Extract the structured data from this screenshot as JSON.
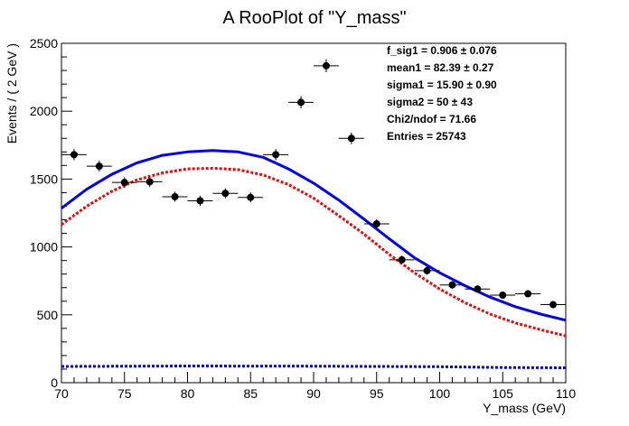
{
  "chart_data": {
    "type": "scatter",
    "title": "A RooPlot of \"Y_mass\"",
    "xlabel": "Y_mass (GeV)",
    "ylabel": "Events / ( 2 GeV )",
    "xlim": [
      70,
      110
    ],
    "ylim": [
      0,
      2500
    ],
    "x_ticks": [
      "70",
      "75",
      "80",
      "85",
      "90",
      "95",
      "100",
      "105",
      "110"
    ],
    "y_ticks": [
      "0",
      "500",
      "1000",
      "1500",
      "2000",
      "2500"
    ],
    "grid": false,
    "data_points": {
      "x": [
        71,
        73,
        75,
        77,
        79,
        81,
        83,
        85,
        87,
        89,
        91,
        93,
        95,
        97,
        99,
        101,
        103,
        105,
        107,
        109
      ],
      "y": [
        1680,
        1595,
        1475,
        1480,
        1370,
        1340,
        1395,
        1365,
        1680,
        2065,
        2335,
        1800,
        1170,
        905,
        825,
        720,
        690,
        645,
        655,
        575
      ],
      "yerr": [
        41,
        40,
        38,
        38,
        37,
        37,
        37,
        37,
        41,
        45,
        48,
        42,
        34,
        30,
        29,
        27,
        26,
        25,
        26,
        24
      ],
      "xerr": 1
    },
    "series": [
      {
        "style": "solid",
        "color": "#0000ff",
        "x": [
          70,
          72,
          74,
          76,
          78,
          80,
          82,
          84,
          86,
          88,
          90,
          92,
          94,
          96,
          98,
          100,
          102,
          104,
          106,
          108,
          110
        ],
        "y": [
          1285,
          1425,
          1535,
          1620,
          1675,
          1700,
          1710,
          1700,
          1660,
          1575,
          1470,
          1345,
          1205,
          1060,
          920,
          810,
          715,
          630,
          560,
          505,
          460
        ]
      },
      {
        "style": "dashed",
        "color": "#ff0000",
        "x": [
          70,
          72,
          74,
          76,
          78,
          80,
          82,
          84,
          86,
          88,
          90,
          92,
          94,
          96,
          98,
          100,
          102,
          104,
          106,
          108,
          110
        ],
        "y": [
          1165,
          1300,
          1410,
          1495,
          1545,
          1575,
          1580,
          1570,
          1530,
          1460,
          1360,
          1230,
          1095,
          945,
          810,
          690,
          590,
          505,
          440,
          390,
          345
        ]
      },
      {
        "style": "dashed",
        "color": "#0000ff",
        "x": [
          70,
          80,
          90,
          100,
          105,
          110
        ],
        "y": [
          120,
          123,
          122,
          118,
          112,
          110
        ]
      }
    ],
    "stats": [
      {
        "label": "f_sig1 =",
        "value": "0.906",
        "error": "0.076"
      },
      {
        "label": "mean1 =",
        "value": "82.39",
        "error": "0.27"
      },
      {
        "label": "sigma1 =",
        "value": "15.90",
        "error": "0.90"
      },
      {
        "label": "sigma2 =",
        "value": "50",
        "error": "43"
      },
      {
        "label": "Chi2/ndof =",
        "value": "71.66",
        "error": ""
      },
      {
        "label": "Entries =",
        "value": "25743",
        "error": ""
      }
    ]
  }
}
